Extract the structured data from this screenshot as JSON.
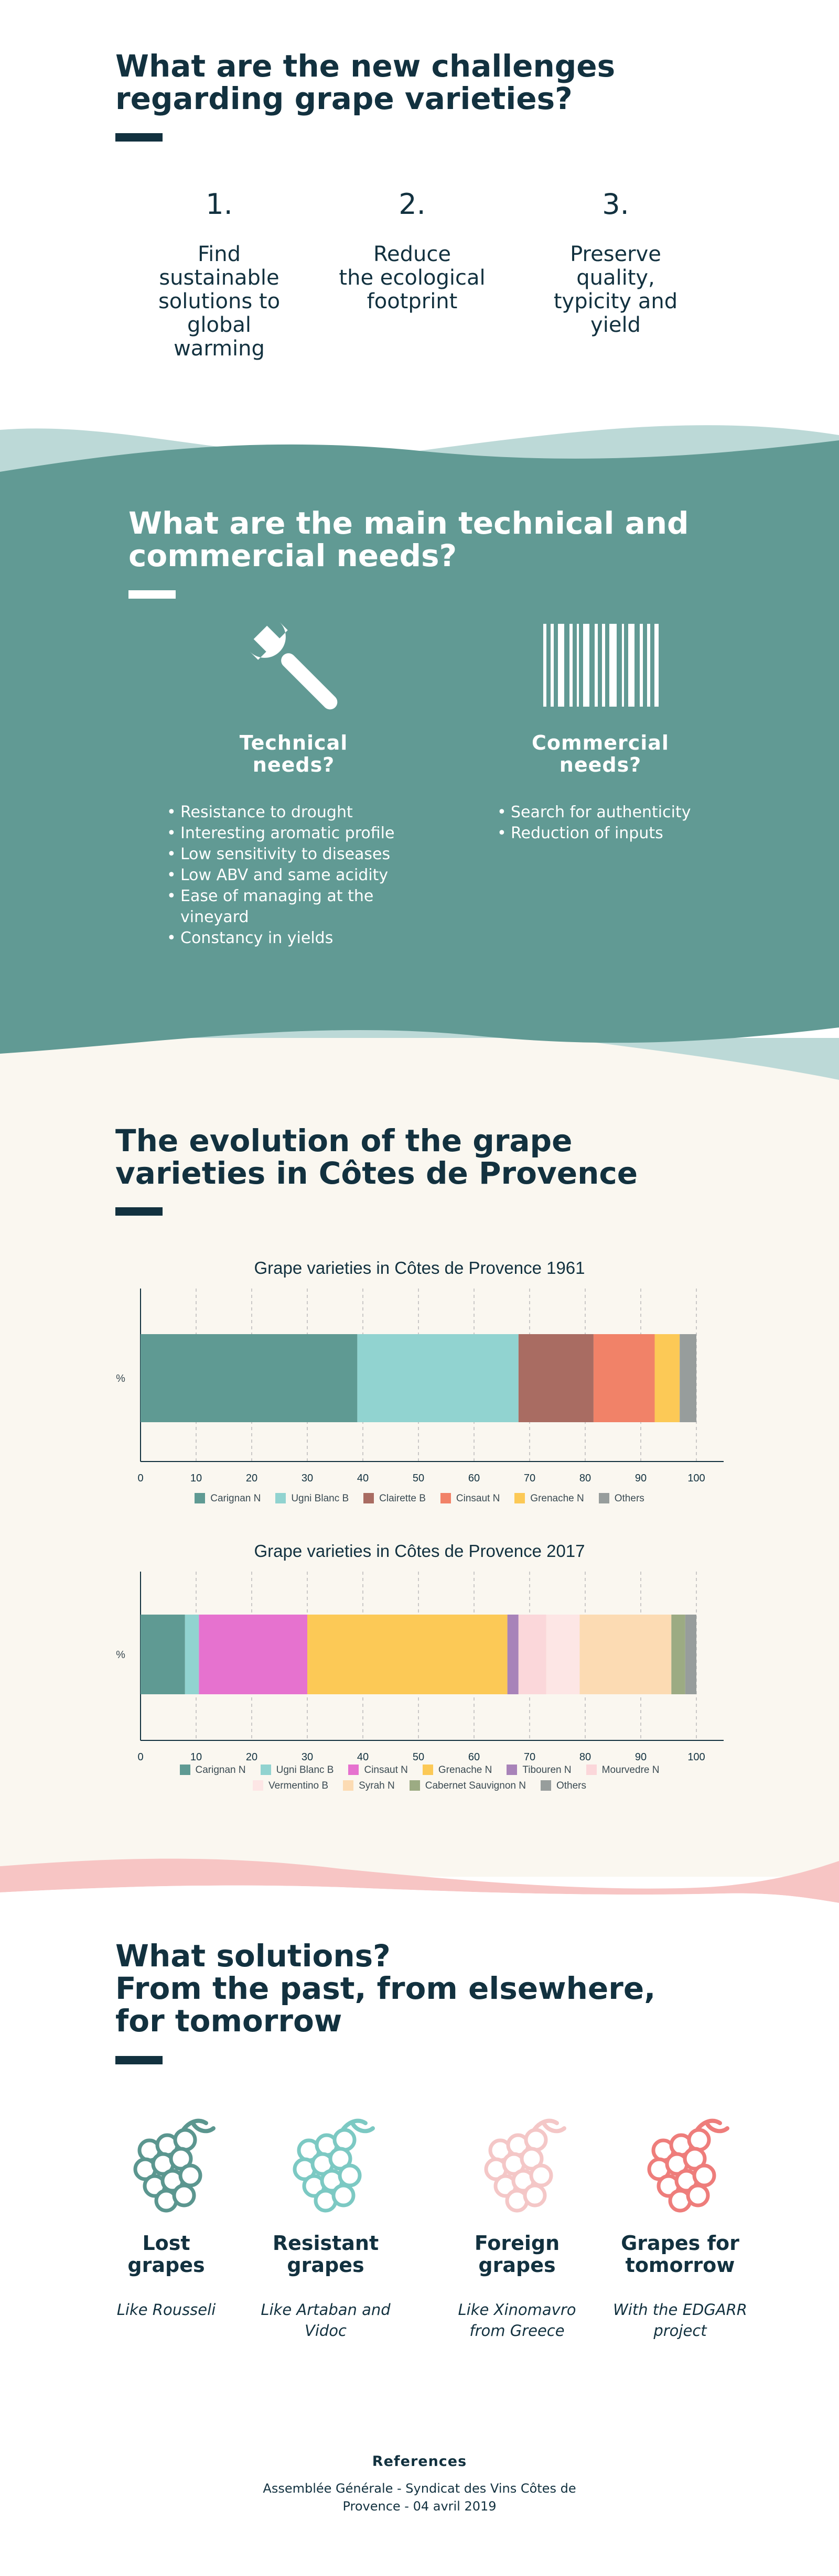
{
  "challenges": {
    "title_line1": "What are the new challenges",
    "title_line2": "regarding grape varieties?",
    "items": [
      {
        "number": "1.",
        "lines": [
          "Find",
          "sustainable",
          "solutions to",
          "global",
          "warming"
        ]
      },
      {
        "number": "2.",
        "lines": [
          "Reduce",
          "the ecological",
          "footprint"
        ]
      },
      {
        "number": "3.",
        "lines": [
          "Preserve",
          "quality,",
          "typicity and",
          "yield"
        ]
      }
    ]
  },
  "needs": {
    "title_line1": "What are the main technical and",
    "title_line2": "commercial needs?",
    "technical": {
      "icon": "wrench-icon",
      "title_line1": "Technical",
      "title_line2": "needs?",
      "items": [
        "Resistance to drought",
        "Interesting aromatic profile",
        "Low sensitivity to diseases",
        "Low ABV and same acidity",
        "Ease of managing at the vineyard",
        "Constancy in yields"
      ]
    },
    "commercial": {
      "icon": "barcode-icon",
      "title_line1": "Commercial",
      "title_line2": "needs?",
      "items": [
        "Search for authenticity",
        "Reduction of inputs"
      ]
    }
  },
  "evolution": {
    "title_line1": "The evolution of the grape",
    "title_line2": "varieties in Côtes de Provence"
  },
  "chart_data": [
    {
      "type": "bar",
      "orientation": "horizontal-stacked",
      "title": "Grape varieties in Côtes de Provence 1961",
      "ylabel": "%",
      "xlim": [
        0,
        100
      ],
      "xticks": [
        "0",
        "10",
        "20",
        "30",
        "40",
        "50",
        "60",
        "70",
        "80",
        "90",
        "100"
      ],
      "grid": "vertical dashed",
      "legend": "bottom",
      "series": [
        {
          "name": "Carignan N",
          "value": 39,
          "color": "#5f9a93"
        },
        {
          "name": "Ugni Blanc B",
          "value": 29,
          "color": "#91d3d0"
        },
        {
          "name": "Clairette B",
          "value": 13.5,
          "color": "#a96c62"
        },
        {
          "name": "Cinsaut N",
          "value": 11,
          "color": "#f18268"
        },
        {
          "name": "Grenache N",
          "value": 4.5,
          "color": "#fcc956"
        },
        {
          "name": "Others",
          "value": 3,
          "color": "#979d9c"
        }
      ]
    },
    {
      "type": "bar",
      "orientation": "horizontal-stacked",
      "title": "Grape varieties in Côtes de Provence 2017",
      "ylabel": "%",
      "xlim": [
        0,
        100
      ],
      "xticks": [
        "0",
        "10",
        "20",
        "30",
        "40",
        "50",
        "60",
        "70",
        "80",
        "90",
        "100"
      ],
      "grid": "vertical dashed",
      "legend": "bottom",
      "series": [
        {
          "name": "Carignan N",
          "value": 8,
          "color": "#5f9a93"
        },
        {
          "name": "Ugni Blanc B",
          "value": 2.5,
          "color": "#91d3d0"
        },
        {
          "name": "Cinsaut N",
          "value": 19.5,
          "color": "#e672cf"
        },
        {
          "name": "Grenache N",
          "value": 36,
          "color": "#fcc956"
        },
        {
          "name": "Tibouren N",
          "value": 2,
          "color": "#a883b9"
        },
        {
          "name": "Mourvedre N",
          "value": 5,
          "color": "#fbd7da"
        },
        {
          "name": "Vermentino B",
          "value": 6,
          "color": "#fde6e5"
        },
        {
          "name": "Syrah N",
          "value": 16.5,
          "color": "#fcdbb3"
        },
        {
          "name": "Cabernet Sauvignon N",
          "value": 2.5,
          "color": "#9cab83"
        },
        {
          "name": "Others",
          "value": 2,
          "color": "#979d9c"
        }
      ]
    }
  ],
  "solutions": {
    "title_line1": "What solutions?",
    "title_line2": "From the past, from elsewhere,",
    "title_line3": "for tomorrow",
    "items": [
      {
        "icon": "grapes-icon",
        "color": "#5b968f",
        "title_line1": "Lost",
        "title_line2": "grapes",
        "sub_line1": "Like Rousseli",
        "sub_line2": ""
      },
      {
        "icon": "grapes-icon",
        "color": "#7cc9c3",
        "title_line1": "Resistant",
        "title_line2": "grapes",
        "sub_line1": "Like Artaban and",
        "sub_line2": "Vidoc"
      },
      {
        "icon": "grapes-icon",
        "color": "#f4c7c7",
        "title_line1": "Foreign",
        "title_line2": "grapes",
        "sub_line1": "Like Xinomavro",
        "sub_line2": "from Greece"
      },
      {
        "icon": "grapes-icon",
        "color": "#ee7d7b",
        "title_line1": "Grapes for",
        "title_line2": "tomorrow",
        "sub_line1": "With the EDGARR",
        "sub_line2": "project"
      }
    ]
  },
  "references": {
    "title": "References",
    "line1": "Assemblée Générale - Syndicat des Vins Côtes de",
    "line2": "Provence - 04 avril 2019"
  },
  "colors": {
    "navy": "#12313f",
    "teal": "#619a94",
    "light_teal": "#bcd9d7",
    "cream": "#faf7f0",
    "pink": "#f7c5c4"
  }
}
